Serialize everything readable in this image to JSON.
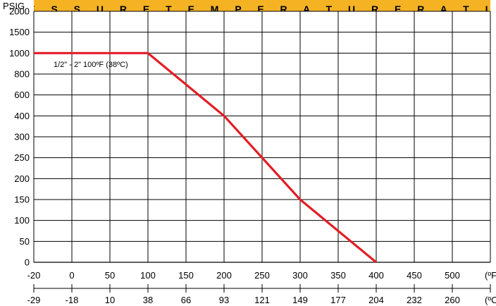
{
  "chart_data": {
    "type": "line",
    "title": "P R E S S U R E   T E M P E R A T U R E   R A T I N G",
    "ylabel": "PSIG",
    "y_ticks": [
      "0",
      "50",
      "100",
      "150",
      "200",
      "250",
      "300",
      "400",
      "600",
      "800",
      "1000",
      "1500",
      "2000"
    ],
    "x_ticks_f": [
      "-20",
      "0",
      "50",
      "100",
      "150",
      "200",
      "250",
      "300",
      "350",
      "400",
      "450",
      "500"
    ],
    "x_unit_f": "(ºF)",
    "x_ticks_c": [
      "-29",
      "-18",
      "10",
      "38",
      "66",
      "93",
      "121",
      "149",
      "177",
      "204",
      "232",
      "260"
    ],
    "x_unit_c": "(ºC)",
    "grid": true,
    "series": [
      {
        "name": "1/2\" - 2\" 100ºF (38ºC)",
        "color": "#e31d25",
        "points": [
          {
            "x": "-20",
            "y": "1000"
          },
          {
            "x": "100",
            "y": "1000"
          },
          {
            "x": "200",
            "y": "400"
          },
          {
            "x": "300",
            "y": "150"
          },
          {
            "x": "400",
            "y": "0"
          }
        ]
      }
    ],
    "annotation": "1/2\" - 2\" 100ºF (38ºC)"
  }
}
